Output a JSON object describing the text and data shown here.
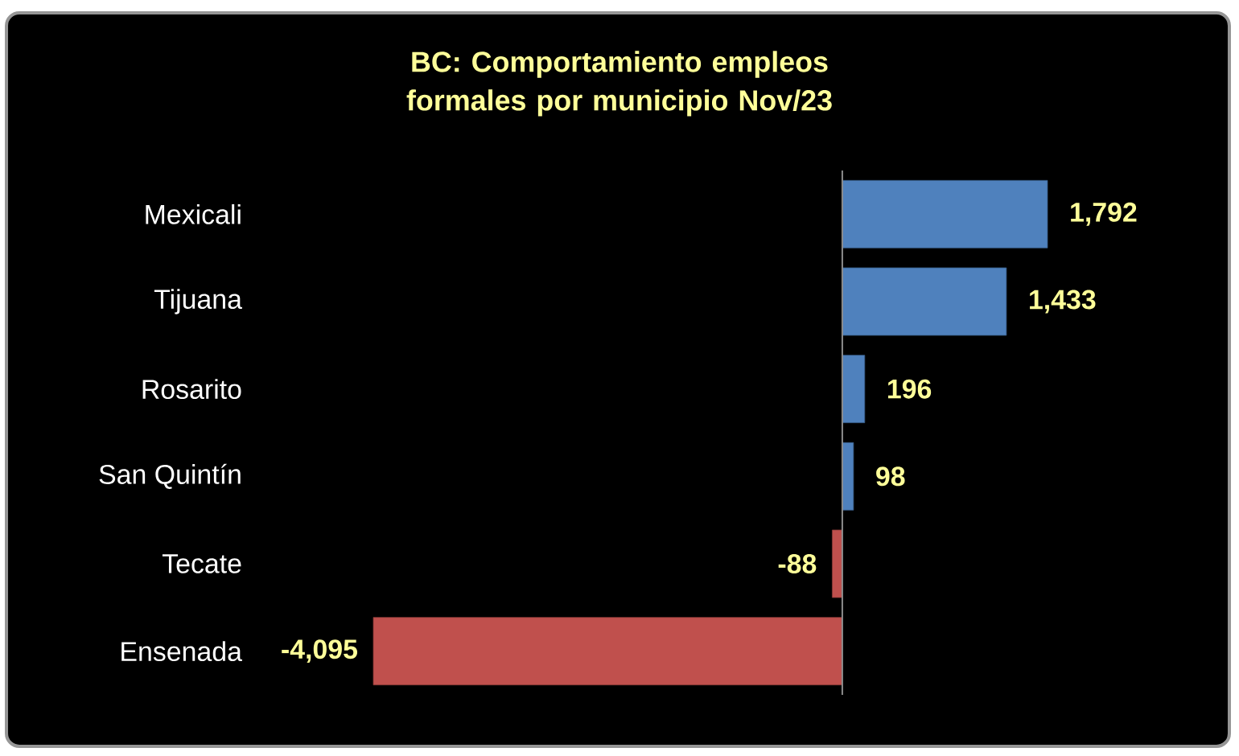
{
  "chart_data": {
    "type": "bar",
    "orientation": "horizontal",
    "title": "BC:  Comportamiento empleos formales por municipio  Nov/23",
    "categories": [
      "Mexicali",
      "Tijuana",
      "Rosarito",
      "San Quintín",
      "Tecate",
      "Ensenada"
    ],
    "values": [
      1792,
      1433,
      196,
      98,
      -88,
      -4095
    ],
    "colors": [
      "#4f81bd",
      "#4f81bd",
      "#4f81bd",
      "#4f81bd",
      "#c0504d",
      "#c0504d"
    ],
    "value_labels": [
      "1,792",
      "1,433",
      "196",
      "98",
      "-88",
      "-4,095"
    ],
    "tick_labels": "y"
  }
}
